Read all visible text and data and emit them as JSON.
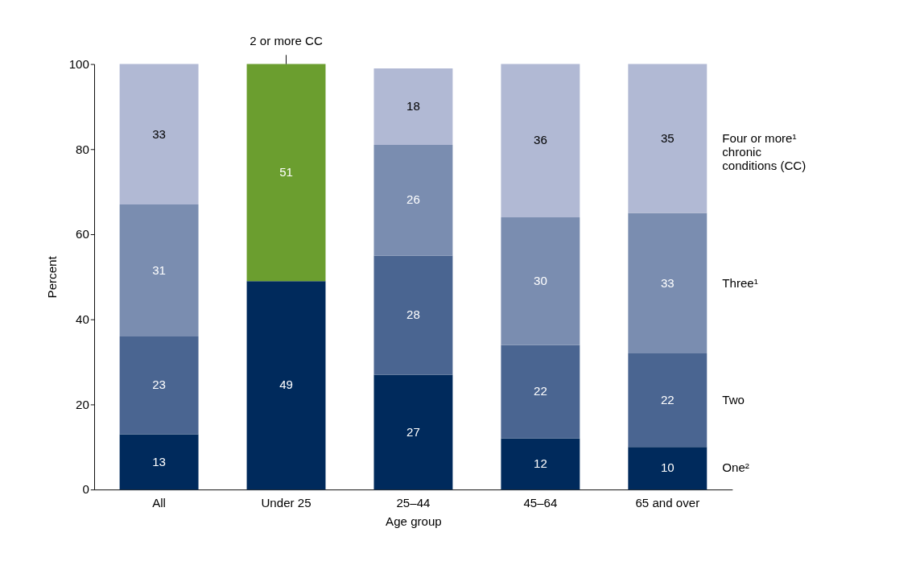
{
  "chart_data": {
    "type": "bar",
    "stacked": true,
    "xlabel": "Age group",
    "ylabel": "Percent",
    "categories": [
      "All",
      "Under 25",
      "25–44",
      "45–64",
      "65 and over"
    ],
    "series": [
      {
        "name": "One²",
        "color": "#002a5c",
        "values": [
          13,
          49,
          27,
          12,
          10
        ]
      },
      {
        "name": "Two",
        "color": "#4a6591",
        "values": [
          23,
          null,
          28,
          22,
          22
        ]
      },
      {
        "name": "Three¹",
        "color": "#7a8db0",
        "values": [
          31,
          null,
          26,
          30,
          33
        ]
      },
      {
        "name": "Four or more¹ chronic conditions (CC)",
        "color": "#b1b9d4",
        "values": [
          33,
          null,
          18,
          36,
          35
        ]
      },
      {
        "name": "2 or more CC",
        "color": "#6b9e2f",
        "values": [
          null,
          51,
          null,
          null,
          null
        ]
      }
    ],
    "ylim": [
      0,
      100
    ],
    "yticks": [
      0,
      20,
      40,
      60,
      80,
      100
    ],
    "grid": false,
    "data_labels": true
  }
}
